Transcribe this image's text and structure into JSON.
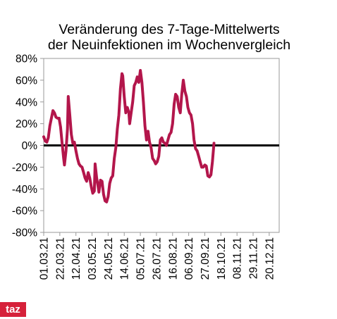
{
  "brand": {
    "logo_text": "taz",
    "color": "#d6213a"
  },
  "chart_data": {
    "type": "line",
    "title_lines": [
      "Veränderung des 7-Tage-Mittelwerts",
      "der Neuinfektionen im Wochenvergleich"
    ],
    "xlabel": "",
    "ylabel": "",
    "ylim": [
      -80,
      80
    ],
    "y_ticks": [
      80,
      60,
      40,
      20,
      0,
      -20,
      -40,
      -60,
      -80
    ],
    "y_tick_labels": [
      "80%",
      "60%",
      "40%",
      "20%",
      "0%",
      "-20%",
      "-40%",
      "-60%",
      "-80%"
    ],
    "x_ticks": [
      "2021-03-01",
      "2021-03-22",
      "2021-04-12",
      "2021-05-03",
      "2021-05-24",
      "2021-06-14",
      "2021-07-05",
      "2021-07-26",
      "2021-08-16",
      "2021-09-06",
      "2021-09-27",
      "2021-10-18",
      "2021-11-08",
      "2021-11-29",
      "2021-12-20"
    ],
    "x_tick_labels": [
      "01.03.21",
      "22.03.21",
      "12.04.21",
      "03.05.21",
      "24.05.21",
      "14.06.21",
      "05.07.21",
      "26.07.21",
      "16.08.21",
      "06.09.21",
      "27.09.21",
      "18.10.21",
      "08.11.21",
      "29.11.21",
      "20.12.21"
    ],
    "xlim": [
      "2021-03-01",
      "2022-01-02"
    ],
    "grid": false,
    "zero_line": true,
    "series": [
      {
        "name": "",
        "color": "#b3164b",
        "points": [
          [
            "2021-03-01",
            8
          ],
          [
            "2021-03-03",
            4
          ],
          [
            "2021-03-05",
            3
          ],
          [
            "2021-03-07",
            7
          ],
          [
            "2021-03-09",
            18
          ],
          [
            "2021-03-11",
            25
          ],
          [
            "2021-03-13",
            32
          ],
          [
            "2021-03-15",
            30
          ],
          [
            "2021-03-17",
            26
          ],
          [
            "2021-03-19",
            25
          ],
          [
            "2021-03-21",
            25
          ],
          [
            "2021-03-23",
            17
          ],
          [
            "2021-03-25",
            2
          ],
          [
            "2021-03-27",
            -12
          ],
          [
            "2021-03-28",
            -18
          ],
          [
            "2021-03-30",
            -5
          ],
          [
            "2021-04-01",
            15
          ],
          [
            "2021-04-02",
            45
          ],
          [
            "2021-04-04",
            28
          ],
          [
            "2021-04-06",
            10
          ],
          [
            "2021-04-08",
            2
          ],
          [
            "2021-04-10",
            3
          ],
          [
            "2021-04-12",
            -5
          ],
          [
            "2021-04-14",
            -12
          ],
          [
            "2021-04-16",
            -17
          ],
          [
            "2021-04-18",
            -19
          ],
          [
            "2021-04-20",
            -20
          ],
          [
            "2021-04-22",
            -25
          ],
          [
            "2021-04-24",
            -30
          ],
          [
            "2021-04-26",
            -33
          ],
          [
            "2021-04-28",
            -25
          ],
          [
            "2021-04-30",
            -30
          ],
          [
            "2021-05-02",
            -38
          ],
          [
            "2021-05-04",
            -44
          ],
          [
            "2021-05-06",
            -42
          ],
          [
            "2021-05-07",
            -17
          ],
          [
            "2021-05-09",
            -30
          ],
          [
            "2021-05-11",
            -38
          ],
          [
            "2021-05-12",
            -43
          ],
          [
            "2021-05-14",
            -32
          ],
          [
            "2021-05-16",
            -33
          ],
          [
            "2021-05-18",
            -45
          ],
          [
            "2021-05-20",
            -51
          ],
          [
            "2021-05-22",
            -52
          ],
          [
            "2021-05-24",
            -47
          ],
          [
            "2021-05-26",
            -35
          ],
          [
            "2021-05-28",
            -30
          ],
          [
            "2021-05-30",
            -28
          ],
          [
            "2021-06-01",
            -12
          ],
          [
            "2021-06-03",
            -2
          ],
          [
            "2021-06-05",
            15
          ],
          [
            "2021-06-07",
            28
          ],
          [
            "2021-06-09",
            52
          ],
          [
            "2021-06-11",
            66
          ],
          [
            "2021-06-12",
            64
          ],
          [
            "2021-06-14",
            45
          ],
          [
            "2021-06-16",
            30
          ],
          [
            "2021-06-18",
            35
          ],
          [
            "2021-06-20",
            30
          ],
          [
            "2021-06-21",
            20
          ],
          [
            "2021-06-23",
            30
          ],
          [
            "2021-06-25",
            40
          ],
          [
            "2021-06-27",
            55
          ],
          [
            "2021-06-29",
            58
          ],
          [
            "2021-07-01",
            63
          ],
          [
            "2021-07-03",
            58
          ],
          [
            "2021-07-05",
            69
          ],
          [
            "2021-07-07",
            58
          ],
          [
            "2021-07-09",
            40
          ],
          [
            "2021-07-11",
            18
          ],
          [
            "2021-07-13",
            5
          ],
          [
            "2021-07-15",
            13
          ],
          [
            "2021-07-17",
            3
          ],
          [
            "2021-07-19",
            -2
          ],
          [
            "2021-07-21",
            -12
          ],
          [
            "2021-07-23",
            -14
          ],
          [
            "2021-07-25",
            -17
          ],
          [
            "2021-07-27",
            -15
          ],
          [
            "2021-07-29",
            -10
          ],
          [
            "2021-07-31",
            5
          ],
          [
            "2021-08-02",
            7
          ],
          [
            "2021-08-04",
            3
          ],
          [
            "2021-08-06",
            2
          ],
          [
            "2021-08-08",
            0
          ],
          [
            "2021-08-10",
            5
          ],
          [
            "2021-08-12",
            10
          ],
          [
            "2021-08-14",
            12
          ],
          [
            "2021-08-16",
            20
          ],
          [
            "2021-08-18",
            38
          ],
          [
            "2021-08-20",
            47
          ],
          [
            "2021-08-22",
            45
          ],
          [
            "2021-08-24",
            35
          ],
          [
            "2021-08-26",
            30
          ],
          [
            "2021-08-28",
            47
          ],
          [
            "2021-08-30",
            60
          ],
          [
            "2021-09-01",
            50
          ],
          [
            "2021-09-03",
            45
          ],
          [
            "2021-09-05",
            35
          ],
          [
            "2021-09-07",
            30
          ],
          [
            "2021-09-09",
            28
          ],
          [
            "2021-09-11",
            20
          ],
          [
            "2021-09-13",
            5
          ],
          [
            "2021-09-15",
            -3
          ],
          [
            "2021-09-17",
            -5
          ],
          [
            "2021-09-19",
            -10
          ],
          [
            "2021-09-21",
            -15
          ],
          [
            "2021-09-23",
            -20
          ],
          [
            "2021-09-25",
            -20
          ],
          [
            "2021-09-27",
            -18
          ],
          [
            "2021-09-29",
            -19
          ],
          [
            "2021-10-01",
            -28
          ],
          [
            "2021-10-03",
            -29
          ],
          [
            "2021-10-05",
            -27
          ],
          [
            "2021-10-07",
            -15
          ],
          [
            "2021-10-09",
            2
          ]
        ]
      }
    ]
  }
}
